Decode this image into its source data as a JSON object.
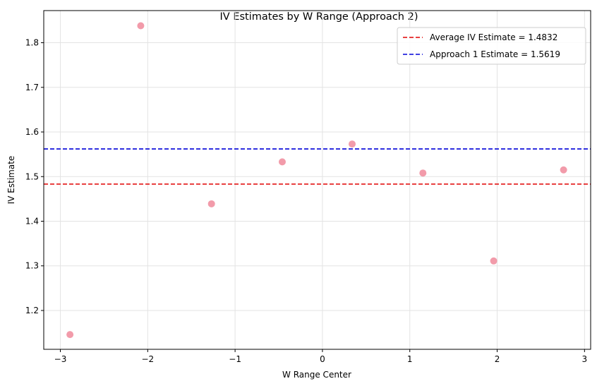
{
  "chart_data": {
    "type": "scatter",
    "title": "IV Estimates by W Range (Approach 2)",
    "xlabel": "W Range Center",
    "ylabel": "IV Estimate",
    "xlim": [
      -3.19,
      3.07
    ],
    "ylim": [
      1.113,
      1.872
    ],
    "xticks": [
      -3,
      -2,
      -1,
      0,
      1,
      2,
      3
    ],
    "xtick_labels": [
      "−3",
      "−2",
      "−1",
      "0",
      "1",
      "2",
      "3"
    ],
    "yticks": [
      1.2,
      1.3,
      1.4,
      1.5,
      1.6,
      1.7,
      1.8
    ],
    "ytick_labels": [
      "1.2",
      "1.3",
      "1.4",
      "1.5",
      "1.6",
      "1.7",
      "1.8"
    ],
    "grid": true,
    "legend_position": "top-right",
    "series": [
      {
        "x": [
          -2.89,
          -2.08,
          -1.27,
          -0.46,
          0.34,
          1.15,
          1.96,
          2.76
        ],
        "y": [
          1.146,
          1.838,
          1.439,
          1.533,
          1.573,
          1.508,
          1.311,
          1.515
        ],
        "color": "#f08a9b"
      }
    ],
    "reference_lines": [
      {
        "label": "Average IV Estimate = 1.4832",
        "y": 1.4832,
        "color": "#e00000",
        "style": "dashed"
      },
      {
        "label": "Approach 1 Estimate = 1.5619",
        "y": 1.5619,
        "color": "#0000d8",
        "style": "dashed"
      }
    ]
  }
}
